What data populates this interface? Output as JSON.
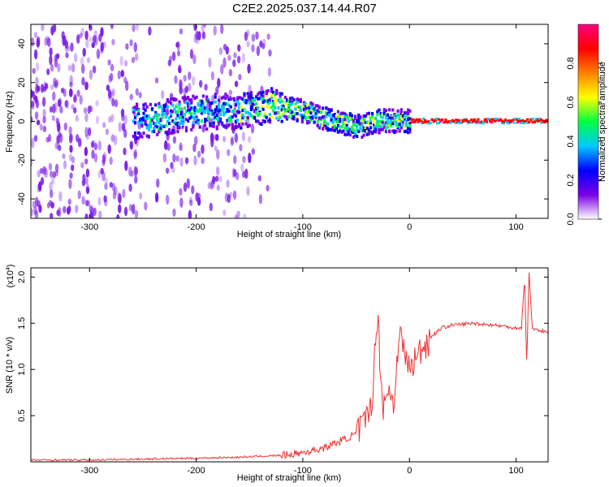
{
  "figure": {
    "title": "C2E2.2025.037.14.44.R07"
  },
  "chart_data": [
    {
      "type": "heatmap",
      "title": "C2E2.2025.037.14.44.R07",
      "xlabel": "Height of straight line (km)",
      "ylabel": "Frequency (Hz)",
      "xlim": [
        -355,
        130
      ],
      "ylim": [
        -50,
        50
      ],
      "xticks": [
        -300,
        -200,
        -100,
        0,
        100
      ],
      "yticks": [
        -40,
        -20,
        0,
        20,
        40
      ],
      "colorbar": {
        "label": "Normalized spectral amplitude",
        "range": [
          0,
          1
        ],
        "ticks": [
          "0.0",
          "0.2",
          "0.4",
          "0.6",
          "0.8"
        ],
        "colors": [
          "#ffffff",
          "#7a00e6",
          "#0000ff",
          "#00c8ff",
          "#00ff40",
          "#ffff00",
          "#ff8000",
          "#ff0000",
          "#ff0080"
        ]
      },
      "trend": {
        "x": [
          -250,
          -200,
          -160,
          -130,
          -100,
          -70,
          -50,
          -30,
          -15,
          0,
          50,
          100,
          130
        ],
        "y": [
          0,
          5,
          5,
          8,
          5,
          0,
          -3,
          0,
          0,
          0,
          0,
          0,
          0
        ]
      }
    },
    {
      "type": "line",
      "xlabel": "Height of straight line (km)",
      "ylabel": "SNR (10 * v/v)",
      "y_multiplier": "(x10",
      "y_multiplier_exp": "4",
      "y_multiplier_close": ")",
      "xlim": [
        -355,
        130
      ],
      "ylim": [
        0,
        2.1
      ],
      "xticks": [
        -300,
        -200,
        -100,
        0,
        100
      ],
      "yticks": [
        "0.5",
        "1.0",
        "1.5",
        "2.0"
      ],
      "series": [
        {
          "color": "#ee3333",
          "x": [
            -355,
            -300,
            -250,
            -200,
            -160,
            -140,
            -120,
            -100,
            -80,
            -60,
            -50,
            -40,
            -35,
            -30,
            -25,
            -20,
            -15,
            -10,
            0,
            10,
            20,
            30,
            40,
            60,
            80,
            100,
            105,
            108,
            110,
            112,
            115,
            120,
            130
          ],
          "y": [
            0.02,
            0.02,
            0.03,
            0.04,
            0.05,
            0.06,
            0.07,
            0.1,
            0.15,
            0.25,
            0.3,
            0.45,
            0.7,
            1.6,
            0.6,
            0.8,
            0.6,
            1.4,
            1.0,
            1.2,
            1.35,
            1.45,
            1.48,
            1.5,
            1.48,
            1.45,
            1.45,
            2.0,
            1.0,
            2.1,
            1.45,
            1.43,
            1.4
          ]
        }
      ]
    }
  ]
}
